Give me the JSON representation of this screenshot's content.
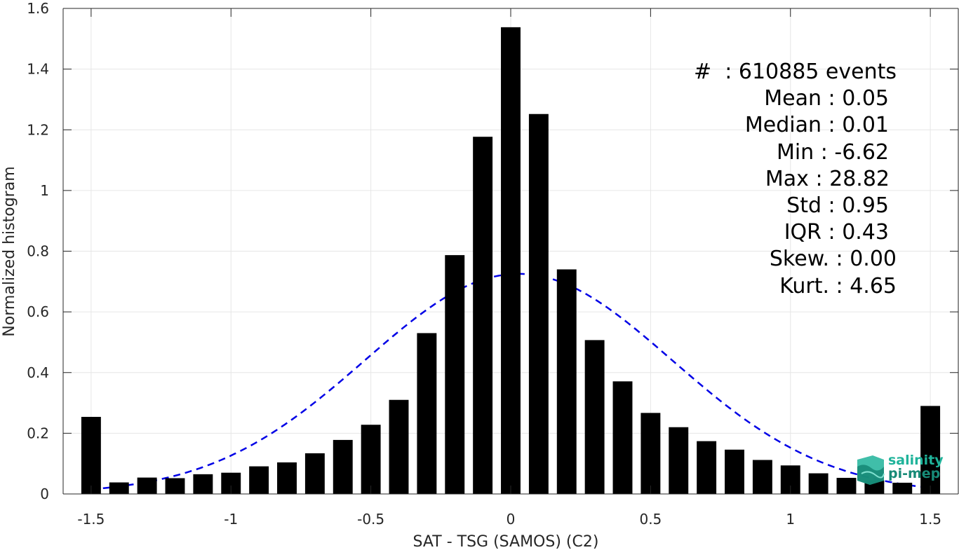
{
  "chart_data": {
    "type": "bar",
    "xlabel": "SAT - TSG (SAMOS) (C2)",
    "ylabel": "Normalized histogram",
    "xlim": [
      -1.6,
      1.6
    ],
    "ylim": [
      0,
      1.6
    ],
    "xticks": [
      -1.5,
      -1,
      -0.5,
      0,
      0.5,
      1,
      1.5
    ],
    "xtick_labels": [
      "-1.5",
      "-1",
      "-0.5",
      "0",
      "0.5",
      "1",
      "1.5"
    ],
    "yticks": [
      0,
      0.2,
      0.4,
      0.6,
      0.8,
      1,
      1.2,
      1.4,
      1.6
    ],
    "ytick_labels": [
      "0",
      "0.2",
      "0.4",
      "0.6",
      "0.8",
      "1",
      "1.2",
      "1.4",
      "1.6"
    ],
    "grid": true,
    "bin_width": 0.1,
    "x": [
      -1.5,
      -1.4,
      -1.3,
      -1.2,
      -1.1,
      -1.0,
      -0.9,
      -0.8,
      -0.7,
      -0.6,
      -0.5,
      -0.4,
      -0.3,
      -0.2,
      -0.1,
      0.0,
      0.1,
      0.2,
      0.3,
      0.4,
      0.5,
      0.6,
      0.7,
      0.8,
      0.9,
      1.0,
      1.1,
      1.2,
      1.3,
      1.4,
      1.5
    ],
    "values": [
      0.254,
      0.038,
      0.054,
      0.052,
      0.065,
      0.07,
      0.091,
      0.104,
      0.134,
      0.178,
      0.228,
      0.31,
      0.53,
      0.787,
      1.177,
      1.538,
      1.252,
      0.74,
      0.507,
      0.371,
      0.267,
      0.22,
      0.174,
      0.146,
      0.112,
      0.094,
      0.068,
      0.053,
      0.045,
      0.037,
      0.29
    ],
    "fit": {
      "type": "normal",
      "mean": 0.028,
      "std": 0.55,
      "color": "#0000e6",
      "style": "dashed",
      "x_range": [
        -1.5,
        1.5
      ]
    },
    "bar_color": "#000000"
  },
  "stats": {
    "count_line": "#  : 610885 events",
    "mean_line": "Mean : 0.05",
    "median_line": "Median : 0.01",
    "min_line": "Min : -6.62",
    "max_line": "Max : 28.82",
    "std_line": "Std : 0.95",
    "iqr_line": "IQR : 0.43",
    "skew_line": "Skew. : 0.00",
    "kurt_line": "Kurt. : 4.65"
  },
  "logo": {
    "line1": "salinity",
    "line2": "pi-mep",
    "icon": "salinity-logo-icon",
    "color": "#1fb39a"
  }
}
